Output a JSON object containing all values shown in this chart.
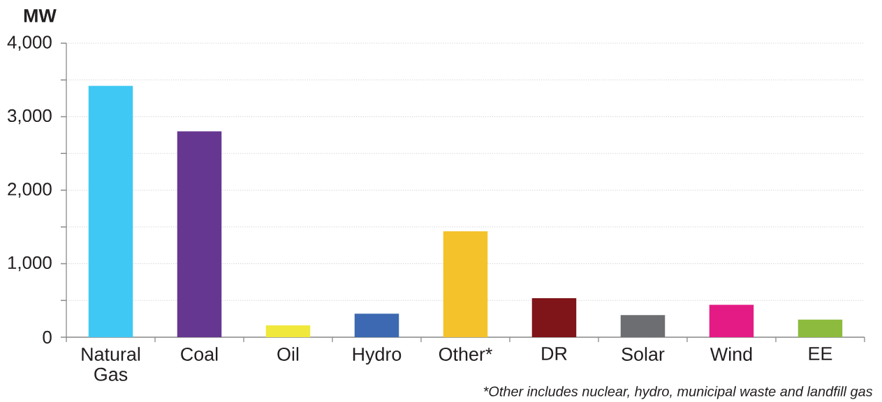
{
  "chart_data": {
    "type": "bar",
    "ylabel": "MW",
    "categories": [
      "Natural Gas",
      "Coal",
      "Oil",
      "Hydro",
      "Other*",
      "DR",
      "Solar",
      "Wind",
      "EE"
    ],
    "values": [
      3420,
      2800,
      160,
      320,
      1440,
      530,
      300,
      440,
      240
    ],
    "colors": [
      "#40c8f4",
      "#663791",
      "#f0e83a",
      "#3c69b1",
      "#f4c22b",
      "#7f1419",
      "#6d6e71",
      "#e41b84",
      "#8dbb3e"
    ],
    "ylim": [
      0,
      4000
    ],
    "yticks": [
      0,
      {
        "value": 500,
        "label": null
      },
      {
        "value": 1000,
        "label": "1,000"
      },
      {
        "value": 1500,
        "label": null
      },
      {
        "value": 2000,
        "label": "2,000"
      },
      {
        "value": 2500,
        "label": null
      },
      {
        "value": 3000,
        "label": "3,000"
      },
      {
        "value": 3500,
        "label": null
      },
      {
        "value": 4000,
        "label": "4,000"
      }
    ],
    "grid": "y",
    "annotations": [
      "*Other includes nuclear, hydro, municipal waste and landfill gas"
    ]
  }
}
